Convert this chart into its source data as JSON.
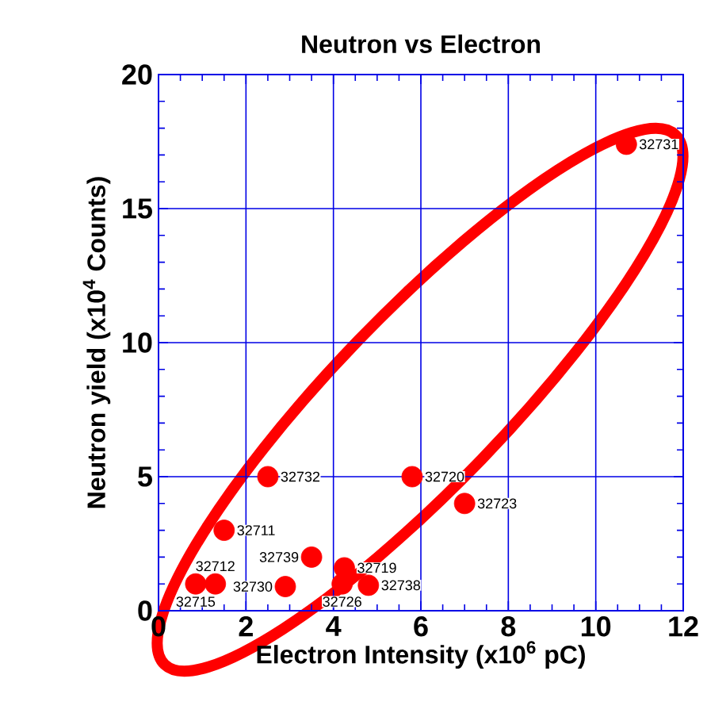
{
  "chart_data": {
    "type": "scatter",
    "title": "Neutron vs Electron",
    "xlabel": "Electron Intensity (x10$^{6}$ pC)",
    "ylabel": "Neutron yield (x10$^{4}$ Counts)",
    "x": [
      10.7,
      2.5,
      5.8,
      7.0,
      1.5,
      3.5,
      4.25,
      4.8,
      4.2,
      2.9,
      1.3,
      0.85
    ],
    "values": [
      17.4,
      5.0,
      5.0,
      4.0,
      3.0,
      2.0,
      1.6,
      0.95,
      1.0,
      0.9,
      1.0,
      1.0
    ],
    "color": "#ff0000",
    "marker": "circle",
    "xlim": [
      0,
      12
    ],
    "ylim": [
      0,
      20
    ],
    "xticks": [
      0,
      2,
      4,
      6,
      8,
      10,
      12
    ],
    "yticks": [
      0,
      5,
      10,
      15,
      20
    ],
    "grid": true,
    "annotations": [
      {
        "text": "32731",
        "x": 10.7,
        "y": 17.4
      },
      {
        "text": "32732",
        "x": 2.5,
        "y": 5.0
      },
      {
        "text": "32720",
        "x": 5.8,
        "y": 5.0
      },
      {
        "text": "32723",
        "x": 7.0,
        "y": 4.0
      },
      {
        "text": "32711",
        "x": 1.5,
        "y": 3.0
      },
      {
        "text": "32739",
        "x": 3.5,
        "y": 2.0
      },
      {
        "text": "32719",
        "x": 4.25,
        "y": 1.6
      },
      {
        "text": "32738",
        "x": 4.8,
        "y": 0.95
      },
      {
        "text": "32726",
        "x": 4.2,
        "y": 1.0
      },
      {
        "text": "32730",
        "x": 2.9,
        "y": 0.9
      },
      {
        "text": "32712",
        "x": 1.3,
        "y": 1.0
      },
      {
        "text": "32715",
        "x": 0.85,
        "y": 1.0
      }
    ]
  }
}
